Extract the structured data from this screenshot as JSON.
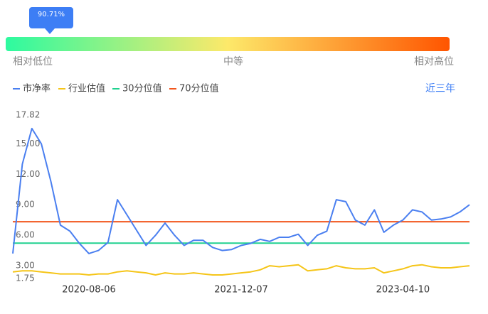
{
  "gauge": {
    "percentile_label": "90.71%",
    "low_label": "相对低位",
    "mid_label": "中等",
    "high_label": "相对高位"
  },
  "range_link": "近三年",
  "chart_data": {
    "type": "line",
    "categories": [
      null,
      null,
      null,
      null,
      null,
      null,
      null,
      null,
      "2020-08-06",
      null,
      null,
      null,
      null,
      null,
      null,
      null,
      null,
      null,
      null,
      null,
      null,
      null,
      null,
      null,
      "2021-12-07",
      null,
      null,
      null,
      null,
      null,
      null,
      null,
      null,
      null,
      null,
      null,
      null,
      null,
      null,
      null,
      null,
      "2023-04-10",
      null,
      null,
      null,
      null,
      null,
      null,
      null
    ],
    "series": [
      {
        "name": "市净率",
        "color": "#4a7ff0",
        "values": [
          4.2,
          13,
          16.5,
          15,
          11.3,
          7.0,
          6.4,
          5.2,
          4.2,
          4.5,
          5.3,
          9.5,
          8.0,
          6.5,
          5.0,
          6.0,
          7.2,
          6.0,
          5.0,
          5.5,
          5.5,
          4.8,
          4.5,
          4.6,
          5.0,
          5.2,
          5.6,
          5.4,
          5.8,
          5.8,
          6.1,
          5.0,
          6.0,
          6.4,
          9.5,
          9.3,
          7.5,
          7.0,
          8.5,
          6.3,
          7.0,
          7.5,
          8.5,
          8.3,
          7.5,
          7.6,
          7.8,
          8.3,
          9.0
        ]
      },
      {
        "name": "行业估值",
        "color": "#f5c518",
        "values": [
          2.4,
          2.5,
          2.5,
          2.4,
          2.3,
          2.2,
          2.2,
          2.2,
          2.1,
          2.2,
          2.2,
          2.4,
          2.5,
          2.4,
          2.3,
          2.1,
          2.3,
          2.2,
          2.2,
          2.3,
          2.2,
          2.1,
          2.1,
          2.2,
          2.3,
          2.4,
          2.6,
          3.0,
          2.9,
          3.0,
          3.1,
          2.5,
          2.6,
          2.7,
          3.0,
          2.8,
          2.7,
          2.7,
          2.8,
          2.3,
          2.5,
          2.7,
          3.0,
          3.1,
          2.9,
          2.8,
          2.8,
          2.9,
          3.0
        ]
      },
      {
        "name": "30分位值",
        "color": "#1fd18f",
        "value": 5.23
      },
      {
        "name": "70分位值",
        "color": "#f2561d",
        "value": 7.33
      }
    ],
    "ylim": [
      1.75,
      17.82
    ],
    "yticks": [
      {
        "value": 1.75,
        "label": "1.75"
      },
      {
        "value": 3,
        "label": "3.00"
      },
      {
        "value": 6,
        "label": "6.00"
      },
      {
        "value": 9,
        "label": "9.00"
      },
      {
        "value": 12,
        "label": "12.00"
      },
      {
        "value": 15,
        "label": "15.00"
      },
      {
        "value": 17.82,
        "label": "17.82"
      }
    ],
    "grid": false
  }
}
